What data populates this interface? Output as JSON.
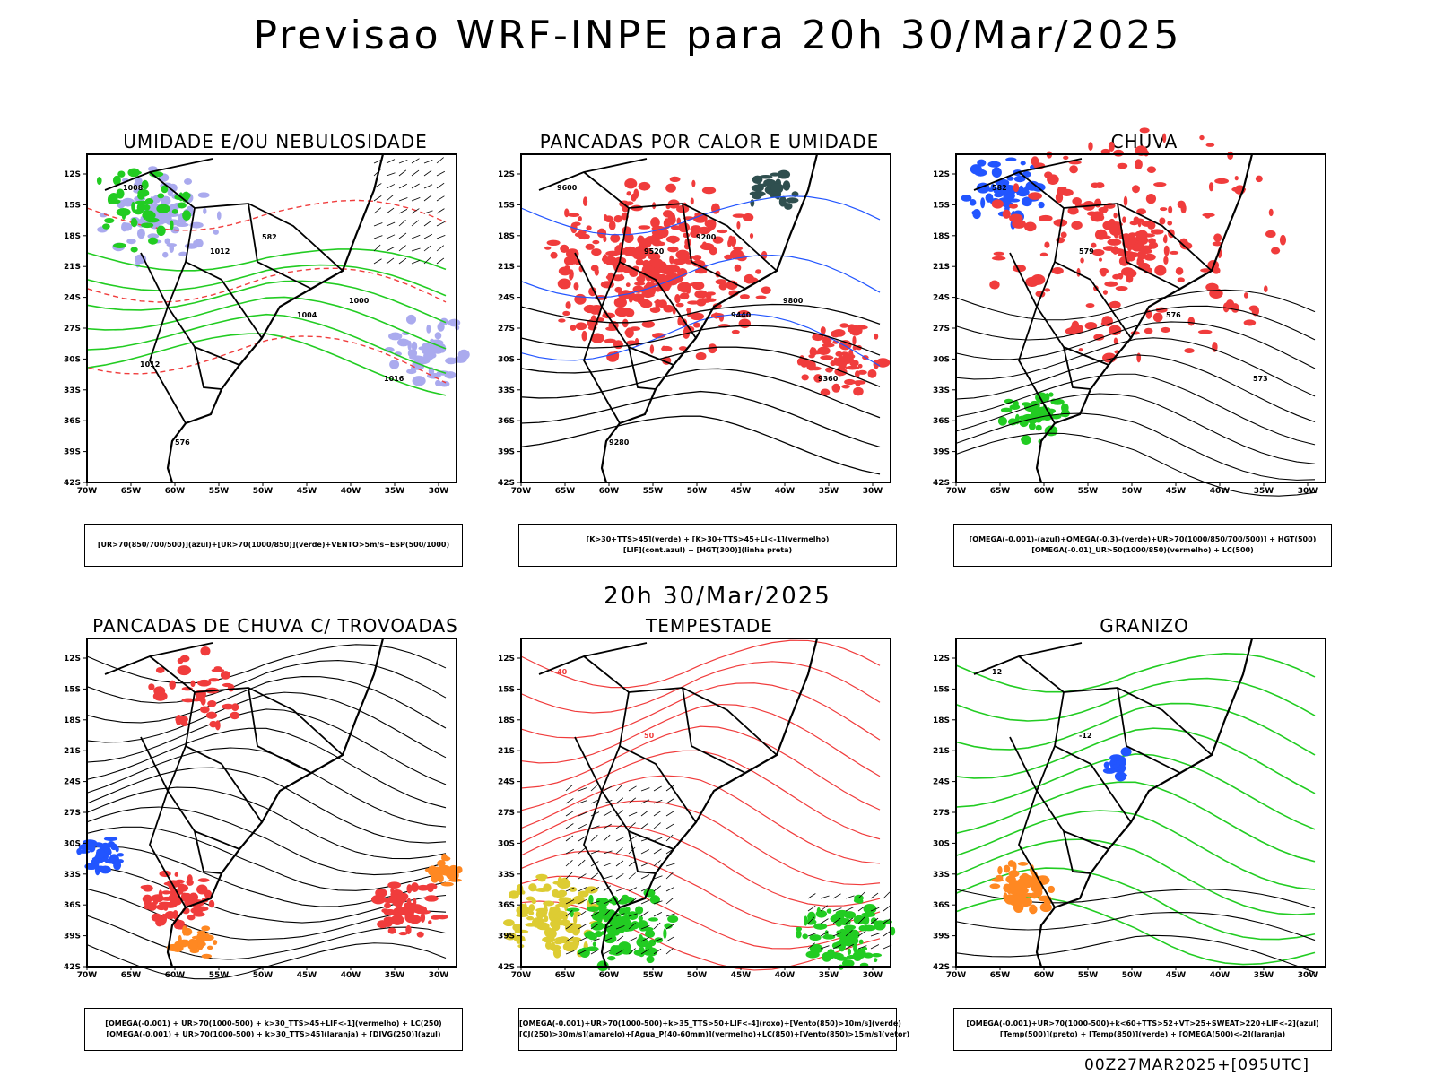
{
  "main_title": "Previsao WRF-INPE  para 20h 30/Mar/2025",
  "mid_time": "20h 30/Mar/2025",
  "footer": "00Z27MAR2025+[095UTC]",
  "lat_ticks": [
    "12S",
    "15S",
    "18S",
    "21S",
    "24S",
    "27S",
    "30S",
    "33S",
    "36S",
    "39S",
    "42S"
  ],
  "lon_ticks": [
    "70W",
    "65W",
    "60W",
    "55W",
    "50W",
    "45W",
    "40W",
    "35W",
    "30W"
  ],
  "colors": {
    "red": "#f03c3c",
    "green": "#22cc22",
    "blue": "#2255ff",
    "lavender": "#aaaaee",
    "yellow": "#ddcc33",
    "orange": "#ff8822",
    "darkteal": "#2f4f4f"
  },
  "panels": [
    {
      "title": "UMIDADE E/OU NEBULOSIDADE",
      "legend": [
        "[UR>70(850/700/500)](azul)+[UR>70(1000/850)](verde)+VENTO>5m/s+ESP(500/1000)"
      ],
      "labels": [
        "1008",
        "1012",
        "1004",
        "1016",
        "576",
        "582",
        "1000",
        "1012"
      ]
    },
    {
      "title": "PANCADAS POR CALOR E UMIDADE",
      "legend": [
        "[K>30+TTS>45](verde) + [K>30+TTS>45+LI<-1](vermelho)",
        "[LIF](cont.azul) + [HGT(300)](linha preta)"
      ],
      "labels": [
        "9600",
        "9520",
        "9440",
        "9360",
        "9280",
        "9200",
        "9800"
      ]
    },
    {
      "title": "CHUVA",
      "legend": [
        "[OMEGA(-0.001)-(azul)+OMEGA(-0.3)-(verde)+UR>70(1000/850/700/500)] + HGT(500)",
        "[OMEGA(-0.01)_UR>50(1000/850)(vermelho) + LC(500)"
      ],
      "labels": [
        "582",
        "579",
        "576",
        "573"
      ]
    },
    {
      "title": "PANCADAS DE CHUVA C/ TROVOADAS",
      "legend": [
        "[OMEGA(-0.001) + UR>70(1000-500) + k>30_TTS>45+LIF<-1](vermelho) + LC(250)",
        "[OMEGA(-0.001) + UR>70(1000-500) + k>30_TTS>45](laranja) + [DIVG(250)](azul)"
      ],
      "labels": []
    },
    {
      "title": "TEMPESTADE",
      "legend": [
        "[OMEGA(-0.001)+UR>70(1000-500)+k>35_TTS>50+LIF<-4](roxo)+[Vento(850)>10m/s](verde)",
        "[CJ(250)>30m/s](amarelo)+[Agua_P(40-60mm)](vermelho)+LC(850)+[Vento(850)>15m/s](vetor)"
      ],
      "labels": [
        "40",
        "50"
      ]
    },
    {
      "title": "GRANIZO",
      "legend": [
        "[OMEGA(-0.001)+UR>70(1000-500)+k<60+TTS>52+VT>25+SWEAT>220+LIF<-2](azul)",
        "[Temp(500)](preto) + [Temp(850)](verde) + [OMEGA(500)<-2](laranja)"
      ],
      "labels": [
        "12",
        "-12"
      ]
    }
  ]
}
